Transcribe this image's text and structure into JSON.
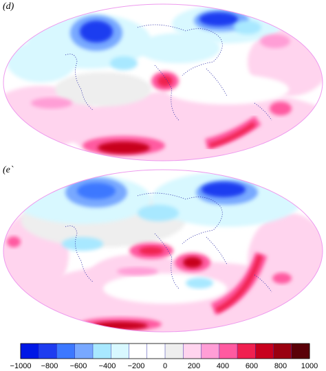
{
  "panels": [
    {
      "id": "d",
      "label": "(d)"
    },
    {
      "id": "e",
      "label": "(e`"
    }
  ],
  "colorbar": {
    "ticks": [
      "−1000",
      "−800",
      "−600",
      "−400",
      "−200",
      "0",
      "200",
      "400",
      "600",
      "800",
      "1000"
    ],
    "bins": [
      "#0018e6",
      "#1e3cf0",
      "#3c78ff",
      "#78a8ff",
      "#a8e8ff",
      "#d8f8ff",
      "#ffffff",
      "#ffffff",
      "#eeeeee",
      "#ffd4ee",
      "#ff9ed6",
      "#ff5aa0",
      "#f02050",
      "#c8001e",
      "#9a0010",
      "#5a0008"
    ]
  },
  "colors": {
    "outline": "#ee99ee",
    "coast": "#3333aa"
  }
}
